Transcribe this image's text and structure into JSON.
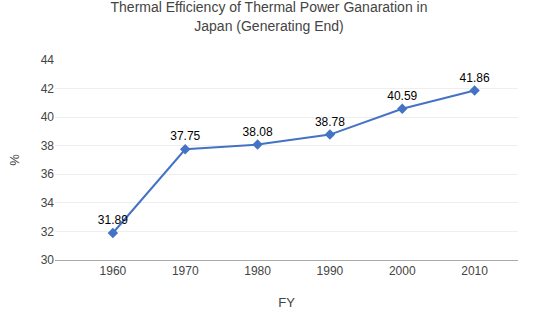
{
  "chart_data": {
    "type": "line",
    "title": "Thermal Efficiency of Thermal Power Ganaration in\nJapan (Generating End)",
    "xlabel": "FY",
    "ylabel": "%",
    "x": [
      1960,
      1970,
      1980,
      1990,
      2000,
      2010
    ],
    "values": [
      31.89,
      37.75,
      38.08,
      38.78,
      40.59,
      41.86
    ],
    "color": "#4472C4",
    "marker": "diamond",
    "xlim": [
      1952,
      2016
    ],
    "xticks": [
      1960,
      1970,
      1980,
      1990,
      2000,
      2010
    ],
    "ylim": [
      30,
      44
    ],
    "yticks": [
      30,
      32,
      34,
      36,
      38,
      40,
      42,
      44
    ],
    "grid": true,
    "data_labels": true
  }
}
